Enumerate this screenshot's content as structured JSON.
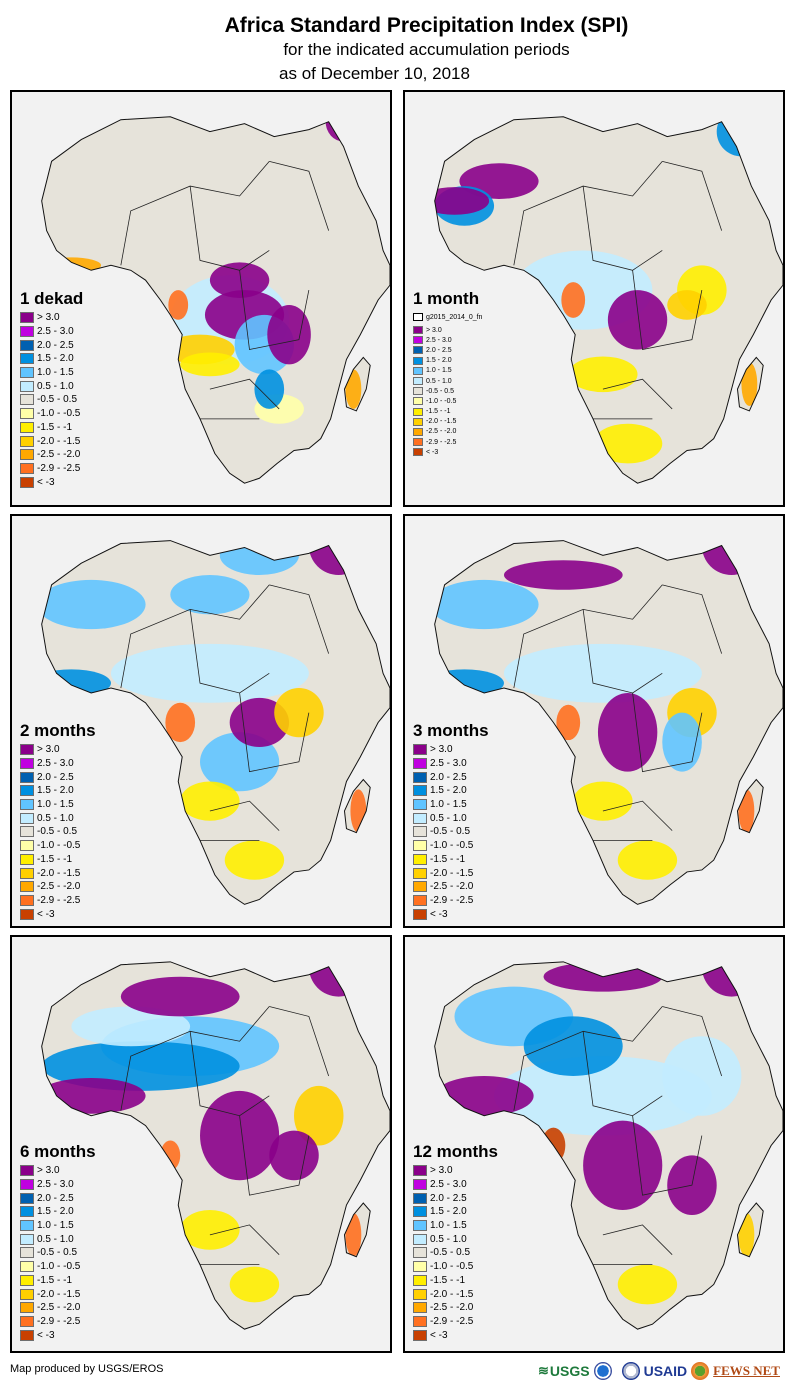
{
  "header": {
    "title": "Africa Standard Precipitation Index (SPI)",
    "subtitle": "for the indicated accumulation periods",
    "date_line": "as of December 10, 2018"
  },
  "legend_classes": [
    {
      "label": "> 3.0",
      "color": "#8a008a"
    },
    {
      "label": "2.5 - 3.0",
      "color": "#c000e0"
    },
    {
      "label": "2.0 - 2.5",
      "color": "#0060b0"
    },
    {
      "label": "1.5 - 2.0",
      "color": "#0090e0"
    },
    {
      "label": "1.0 - 1.5",
      "color": "#60c4ff"
    },
    {
      "label": "0.5 - 1.0",
      "color": "#c2ecff"
    },
    {
      "label": "-0.5 - 0.5",
      "color": "#e6e3da"
    },
    {
      "label": "-1.0 - -0.5",
      "color": "#ffffa8"
    },
    {
      "label": "-1.5 - -1",
      "color": "#ffee00"
    },
    {
      "label": "-2.0 - -1.5",
      "color": "#ffd000"
    },
    {
      "label": "-2.5 - -2.0",
      "color": "#ffa800"
    },
    {
      "label": "-2.9 - -2.5",
      "color": "#ff7020"
    },
    {
      "label": "< -3",
      "color": "#c84000"
    }
  ],
  "panels": [
    {
      "id": "dekad",
      "title": "1 dekad"
    },
    {
      "id": "1month",
      "title": "1 month",
      "nodata_label": "g2015_2014_0_fn"
    },
    {
      "id": "2months",
      "title": "2 months"
    },
    {
      "id": "3months",
      "title": "3 months"
    },
    {
      "id": "6months",
      "title": "6 months"
    },
    {
      "id": "12months",
      "title": "12 months"
    }
  ],
  "footer": {
    "credit": "Map produced by USGS/EROS",
    "logos": [
      {
        "name": "usgs-logo",
        "text": "USGS"
      },
      {
        "name": "noaa-logo",
        "text": ""
      },
      {
        "name": "usaid-logo",
        "text": "USAID"
      },
      {
        "name": "fewsnet-logo",
        "text": "FEWS NET"
      }
    ]
  }
}
